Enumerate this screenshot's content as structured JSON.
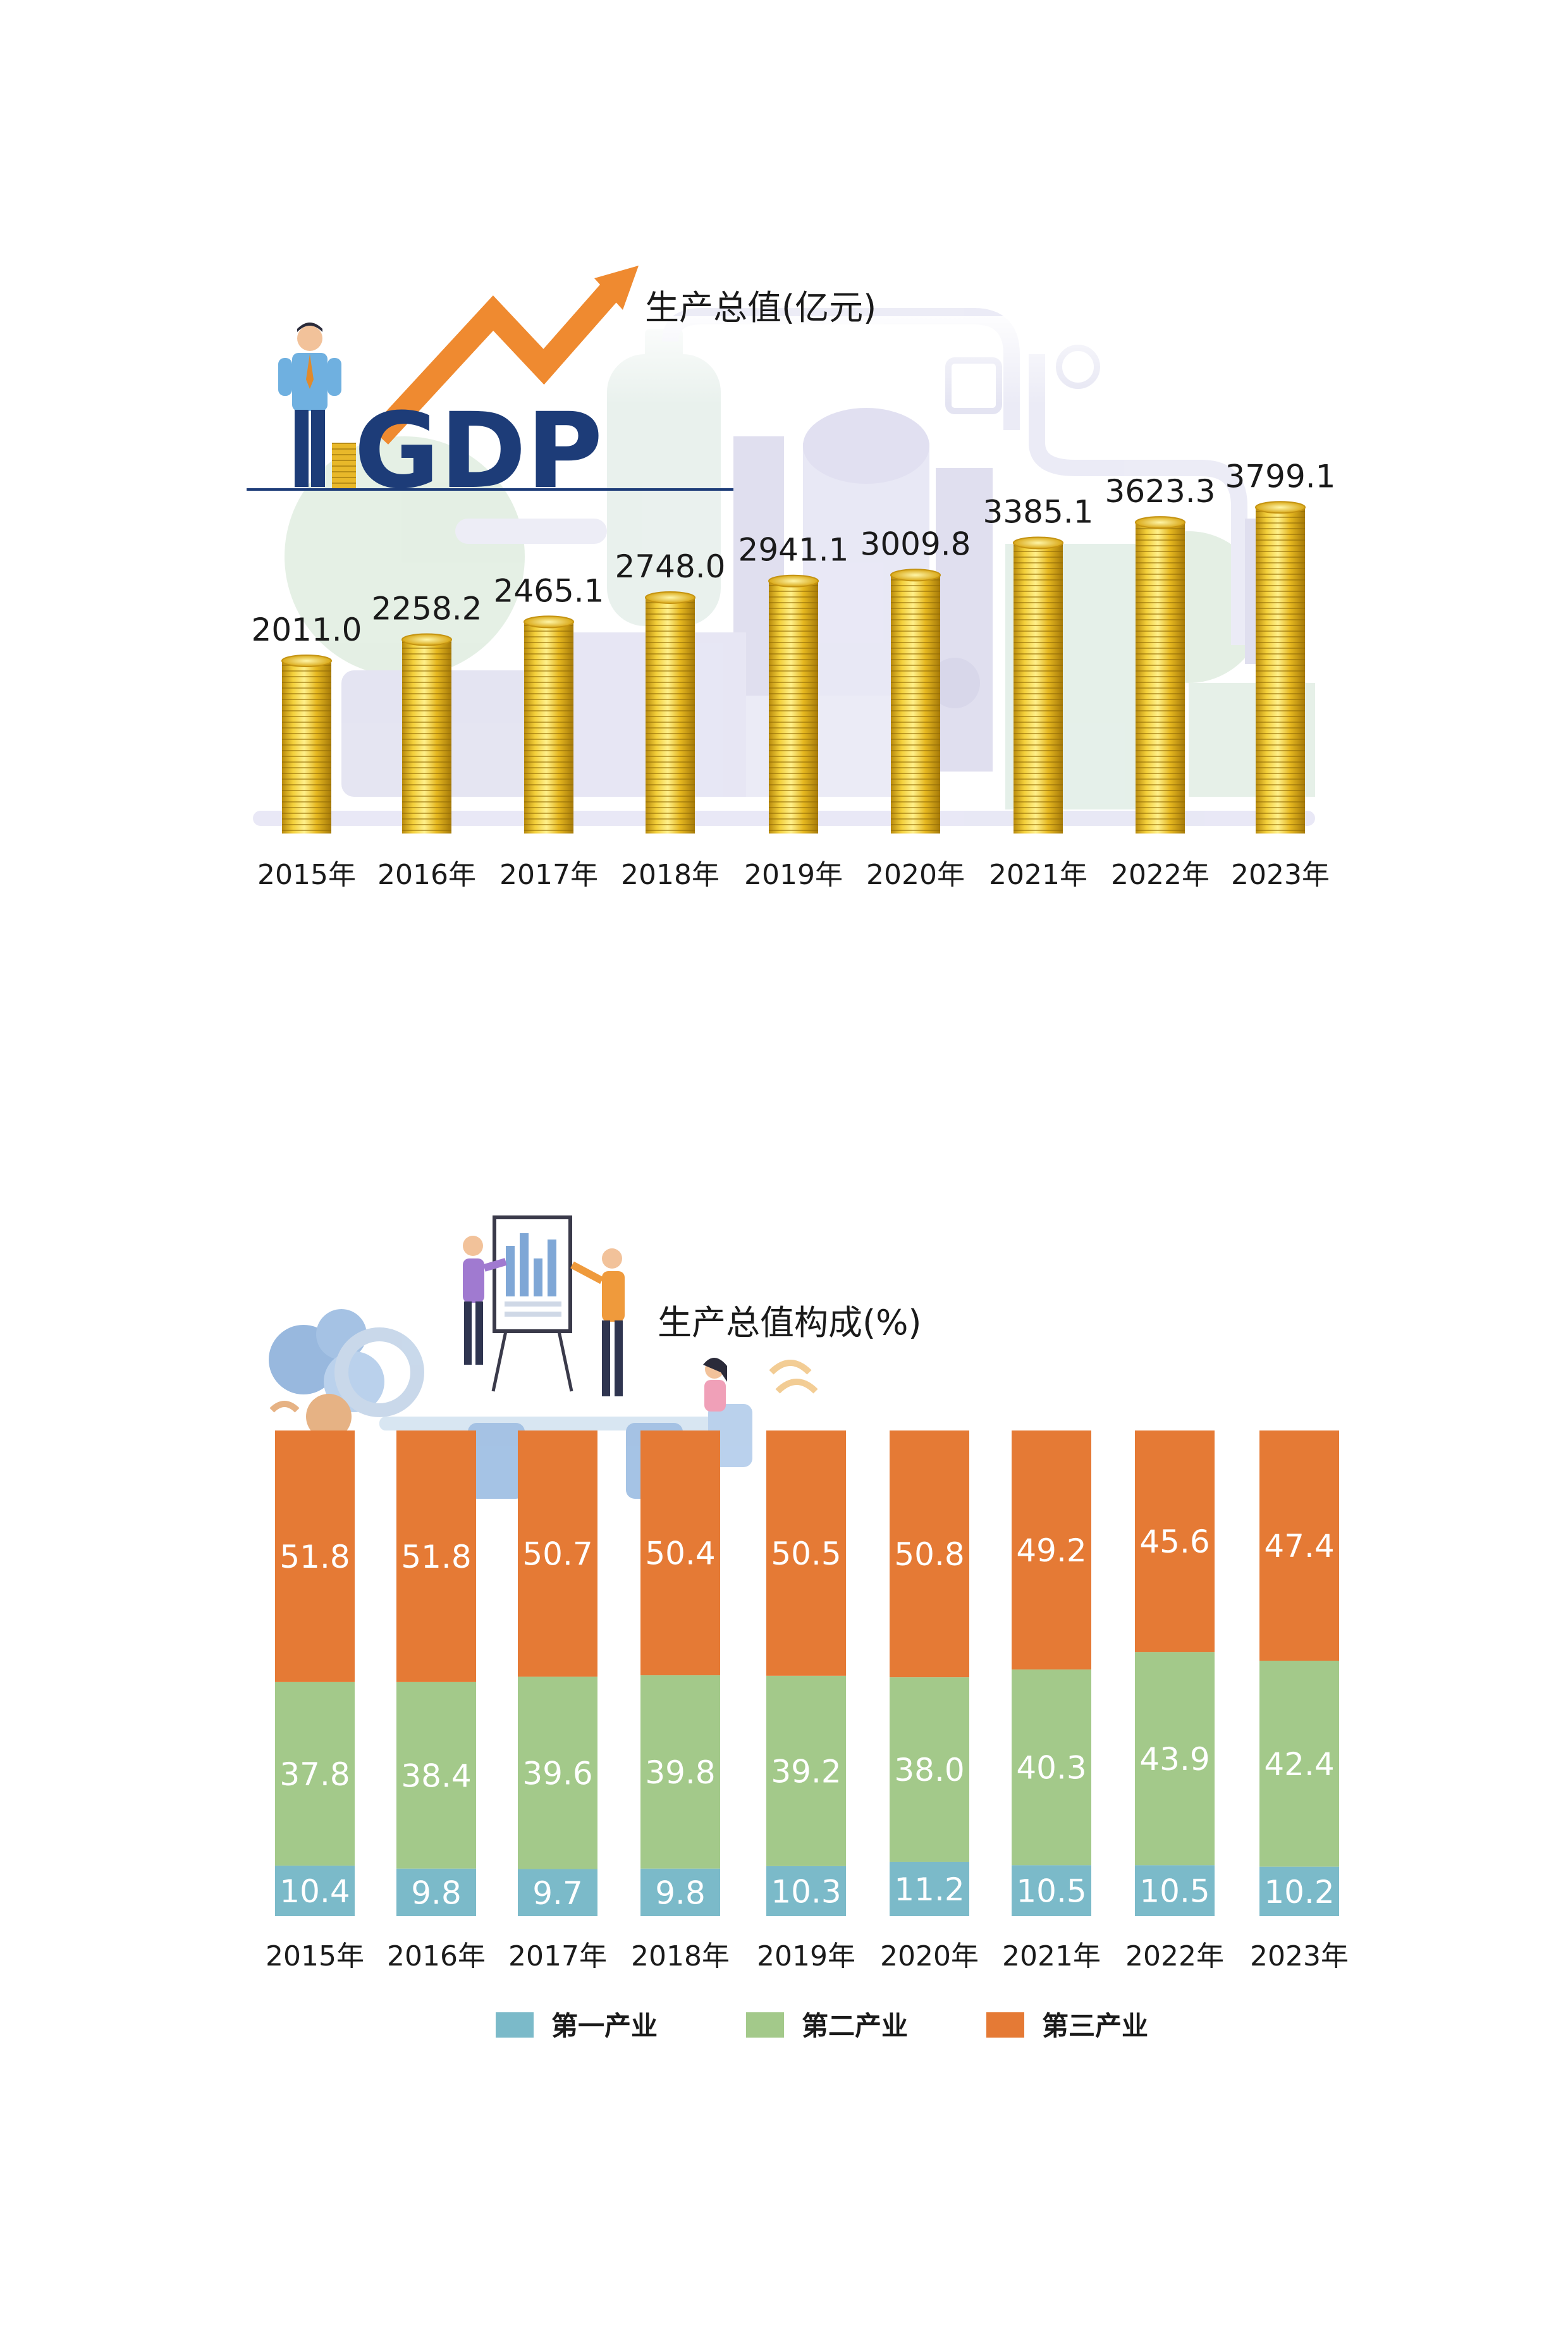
{
  "chart_data": [
    {
      "type": "bar",
      "title": "生产总值(亿元)",
      "badge": "GDP",
      "categories": [
        "2015年",
        "2016年",
        "2017年",
        "2018年",
        "2019年",
        "2020年",
        "2021年",
        "2022年",
        "2023年"
      ],
      "values": [
        2011.0,
        2258.2,
        2465.1,
        2748.0,
        2941.1,
        3009.8,
        3385.1,
        3623.3,
        3799.1
      ],
      "value_labels": [
        "2011.0",
        "2258.2",
        "2465.1",
        "2748.0",
        "2941.1",
        "3009.8",
        "3385.1",
        "3623.3",
        "3799.1"
      ],
      "bar_style": "stacked-gold-coins",
      "grid": false,
      "colors": {
        "coin": "#e6b820",
        "coin_dark": "#b88a0c",
        "coin_light": "#fff08a",
        "badge": "#1d3c78",
        "arrow": "#ef8a30"
      }
    },
    {
      "type": "bar",
      "stacked": true,
      "title": "生产总值构成(%)",
      "categories": [
        "2015年",
        "2016年",
        "2017年",
        "2018年",
        "2019年",
        "2020年",
        "2021年",
        "2022年",
        "2023年"
      ],
      "series": [
        {
          "name": "第一产业",
          "color": "#7bbac9",
          "values": [
            10.4,
            9.8,
            9.7,
            9.8,
            10.3,
            11.2,
            10.5,
            10.5,
            10.2
          ],
          "labels": [
            "10.4",
            "9.8",
            "9.7",
            "9.8",
            "10.3",
            "11.2",
            "10.5",
            "10.5",
            "10.2"
          ]
        },
        {
          "name": "第二产业",
          "color": "#a3c98a",
          "values": [
            37.8,
            38.4,
            39.6,
            39.8,
            39.2,
            38.0,
            40.3,
            43.9,
            42.4
          ],
          "labels": [
            "37.8",
            "38.4",
            "39.6",
            "39.8",
            "39.2",
            "38.0",
            "40.3",
            "43.9",
            "42.4"
          ]
        },
        {
          "name": "第三产业",
          "color": "#e57a35",
          "values": [
            51.8,
            51.8,
            50.7,
            50.4,
            50.5,
            50.8,
            49.2,
            45.6,
            47.4
          ],
          "labels": [
            "51.8",
            "51.8",
            "50.7",
            "50.4",
            "50.5",
            "50.8",
            "49.2",
            "45.6",
            "47.4"
          ]
        }
      ],
      "ylim": [
        0,
        100
      ],
      "legend_position": "bottom",
      "grid": false
    }
  ]
}
